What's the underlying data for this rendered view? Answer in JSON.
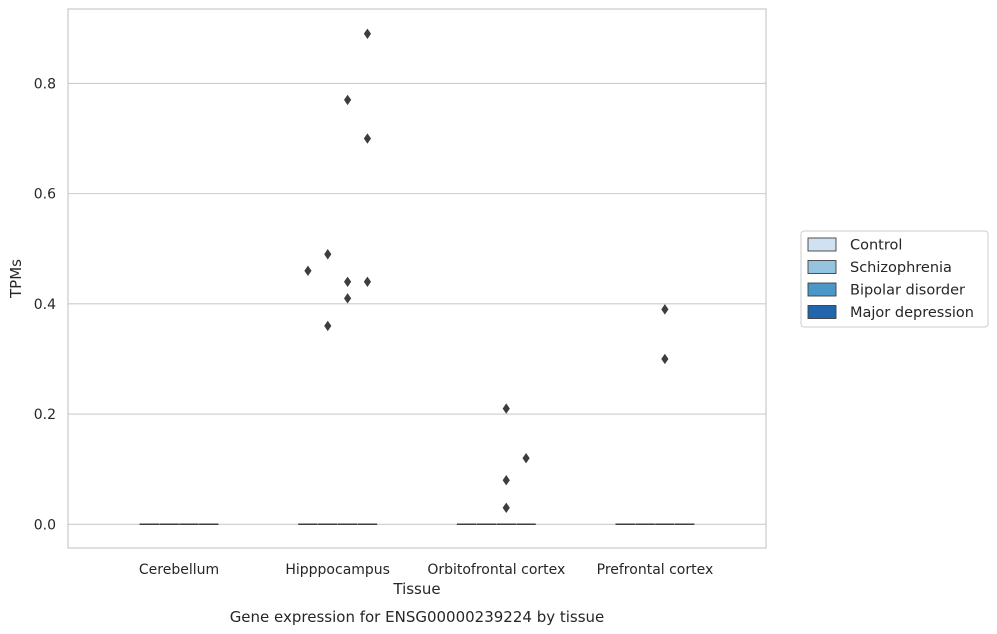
{
  "chart_data": {
    "type": "box",
    "title": "",
    "caption": "Gene expression for ENSG00000239224 by tissue",
    "xlabel": "Tissue",
    "ylabel": "TPMs",
    "ylim": [
      -0.043,
      0.935
    ],
    "yticks": [
      0.0,
      0.2,
      0.4,
      0.6,
      0.8
    ],
    "ytick_labels": [
      "0.0",
      "0.2",
      "0.4",
      "0.6",
      "0.8"
    ],
    "grid": "horizontal",
    "legend_position": "right",
    "categories": [
      "Cerebellum",
      "Hipppocampus",
      "Orbitofrontal cortex",
      "Prefrontal cortex"
    ],
    "series": [
      {
        "name": "Control",
        "color": "#d0e1f2",
        "boxes": [
          {
            "median": 0,
            "q1": 0,
            "q3": 0,
            "outliers": []
          },
          {
            "median": 0,
            "q1": 0,
            "q3": 0,
            "outliers": [
              0.46
            ]
          },
          {
            "median": 0,
            "q1": 0,
            "q3": 0,
            "outliers": []
          },
          {
            "median": 0,
            "q1": 0,
            "q3": 0,
            "outliers": []
          }
        ]
      },
      {
        "name": "Schizophrenia",
        "color": "#94c4df",
        "boxes": [
          {
            "median": 0,
            "q1": 0,
            "q3": 0,
            "outliers": []
          },
          {
            "median": 0,
            "q1": 0,
            "q3": 0,
            "outliers": [
              0.49,
              0.36
            ]
          },
          {
            "median": 0,
            "q1": 0,
            "q3": 0,
            "outliers": []
          },
          {
            "median": 0,
            "q1": 0,
            "q3": 0,
            "outliers": []
          }
        ]
      },
      {
        "name": "Bipolar disorder",
        "color": "#4a98c9",
        "boxes": [
          {
            "median": 0,
            "q1": 0,
            "q3": 0,
            "outliers": []
          },
          {
            "median": 0,
            "q1": 0,
            "q3": 0,
            "outliers": [
              0.77,
              0.44,
              0.41
            ]
          },
          {
            "median": 0,
            "q1": 0,
            "q3": 0,
            "outliers": [
              0.21,
              0.08,
              0.03
            ]
          },
          {
            "median": 0,
            "q1": 0,
            "q3": 0,
            "outliers": [
              0.39,
              0.3
            ]
          }
        ]
      },
      {
        "name": "Major depression",
        "color": "#2166ac",
        "boxes": [
          {
            "median": 0,
            "q1": 0,
            "q3": 0,
            "outliers": []
          },
          {
            "median": 0,
            "q1": 0,
            "q3": 0,
            "outliers": [
              0.89,
              0.7,
              0.44
            ]
          },
          {
            "median": 0,
            "q1": 0,
            "q3": 0,
            "outliers": [
              0.12
            ]
          },
          {
            "median": 0,
            "q1": 0,
            "q3": 0,
            "outliers": []
          }
        ]
      }
    ]
  }
}
